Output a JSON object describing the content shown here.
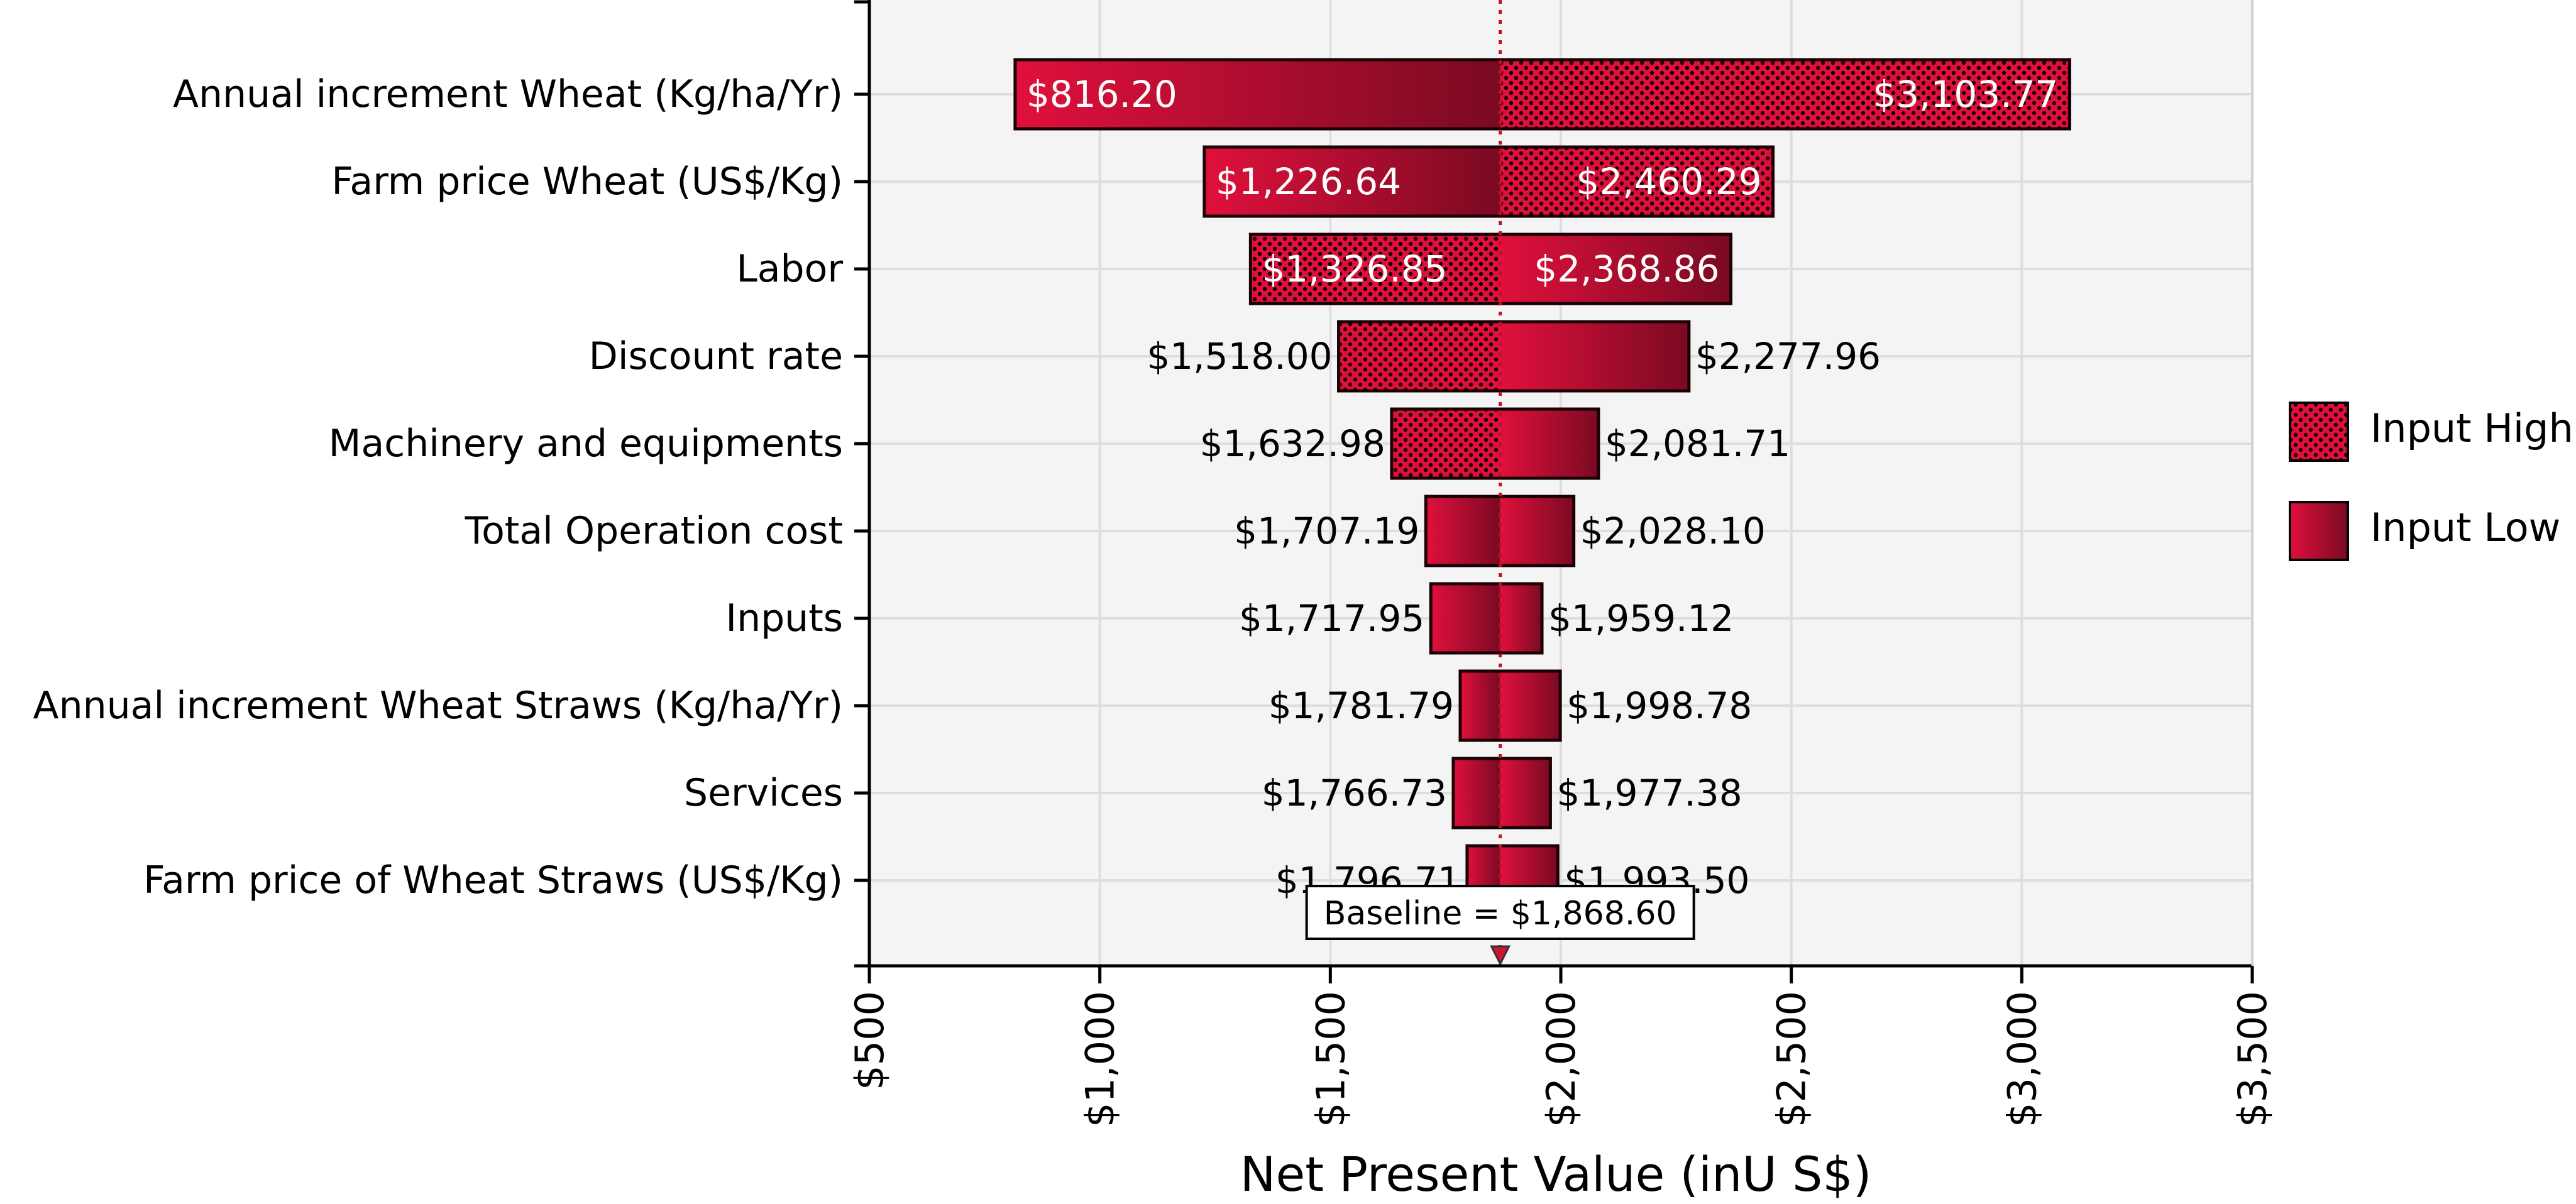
{
  "chart_data": {
    "type": "tornado",
    "title": "",
    "xlabel": "Net Present Value (inU S$)",
    "ylabel": "",
    "xlim": [
      500,
      3500
    ],
    "x_ticks": [
      500,
      1000,
      1500,
      2000,
      2500,
      3000,
      3500
    ],
    "x_tick_labels": [
      "$500",
      "$1,000",
      "$1,500",
      "$2,000",
      "$2,500",
      "$3,000",
      "$3,500"
    ],
    "grid": true,
    "legend_position": "right",
    "baseline": {
      "value": 1868.6,
      "label": "Baseline = $1,868.60"
    },
    "series": [
      {
        "name": "Input High",
        "pattern": "dotted"
      },
      {
        "name": "Input Low",
        "pattern": "solid"
      }
    ],
    "categories": [
      "Annual increment Wheat (Kg/ha/Yr)",
      "Farm price Wheat  (US$/Kg)",
      "Labor",
      "Discount rate",
      "Machinery and equipments",
      "Total Operation cost",
      "Inputs",
      "Annual increment Wheat Straws (Kg/ha/Yr)",
      "Services",
      "Farm price of Wheat Straws  (US$/Kg)"
    ],
    "bars": [
      {
        "low": 816.2,
        "low_label": "$816.20",
        "high": 3103.77,
        "high_label": "$3,103.77",
        "left_input": "Input Low",
        "right_input": "Input High"
      },
      {
        "low": 1226.64,
        "low_label": "$1,226.64",
        "high": 2460.29,
        "high_label": "$2,460.29",
        "left_input": "Input Low",
        "right_input": "Input High"
      },
      {
        "low": 1326.85,
        "low_label": "$1,326.85",
        "high": 2368.86,
        "high_label": "$2,368.86",
        "left_input": "Input High",
        "right_input": "Input Low"
      },
      {
        "low": 1518.0,
        "low_label": "$1,518.00",
        "high": 2277.96,
        "high_label": "$2,277.96",
        "left_input": "Input High",
        "right_input": "Input Low"
      },
      {
        "low": 1632.98,
        "low_label": "$1,632.98",
        "high": 2081.71,
        "high_label": "$2,081.71",
        "left_input": "Input High",
        "right_input": "Input Low"
      },
      {
        "low": 1707.19,
        "low_label": "$1,707.19",
        "high": 2028.1,
        "high_label": "$2,028.10",
        "left_input": "Input Low",
        "right_input": "Input Low"
      },
      {
        "low": 1717.95,
        "low_label": "$1,717.95",
        "high": 1959.12,
        "high_label": "$1,959.12",
        "left_input": "Input Low",
        "right_input": "Input Low"
      },
      {
        "low": 1781.79,
        "low_label": "$1,781.79",
        "high": 1998.78,
        "high_label": "$1,998.78",
        "left_input": "Input Low",
        "right_input": "Input Low"
      },
      {
        "low": 1766.73,
        "low_label": "$1,766.73",
        "high": 1977.38,
        "high_label": "$1,977.38",
        "left_input": "Input Low",
        "right_input": "Input Low"
      },
      {
        "low": 1796.71,
        "low_label": "$1,796.71",
        "high": 1993.5,
        "high_label": "$1,993.50",
        "left_input": "Input Low",
        "right_input": "Input Low"
      }
    ],
    "colors": {
      "bar_light": "#e0103c",
      "bar_dark": "#7a0a22",
      "plot_bg": "#f4f4f4",
      "grid": "#dedede",
      "baseline_line": "#c0102a"
    }
  }
}
